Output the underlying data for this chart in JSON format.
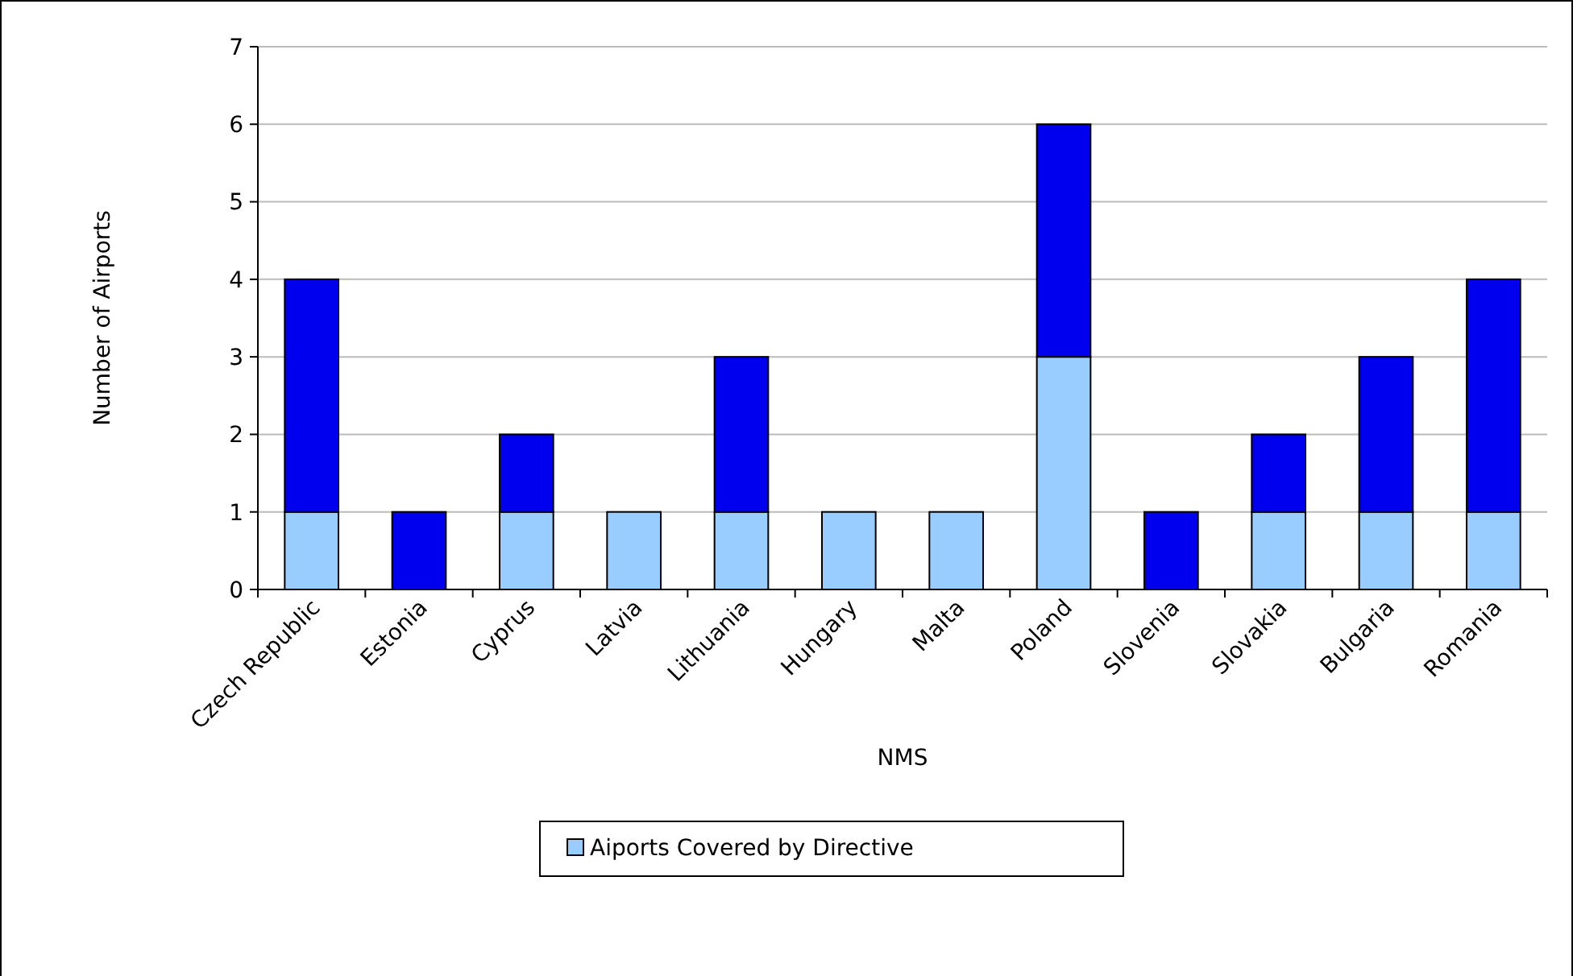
{
  "chart_data": {
    "type": "bar",
    "stacked": true,
    "xlabel": "NMS",
    "ylabel": "Number of Airports",
    "categories": [
      "Czech Republic",
      "Estonia",
      "Cyprus",
      "Latvia",
      "Lithuania",
      "Hungary",
      "Malta",
      "Poland",
      "Slovenia",
      "Slovakia",
      "Bulgaria",
      "Romania"
    ],
    "series": [
      {
        "name": "Aiports Covered by Directive",
        "color": "#99ccff",
        "values": [
          1,
          0,
          1,
          1,
          1,
          1,
          1,
          3,
          0,
          1,
          1,
          1
        ]
      },
      {
        "color": "#0000ee",
        "values": [
          3,
          1,
          1,
          0,
          2,
          0,
          0,
          3,
          1,
          1,
          2,
          3
        ]
      }
    ],
    "ylim": [
      0,
      7
    ],
    "yticks": [
      0,
      1,
      2,
      3,
      4,
      5,
      6,
      7
    ],
    "grid": "y",
    "legend": "bottom"
  }
}
